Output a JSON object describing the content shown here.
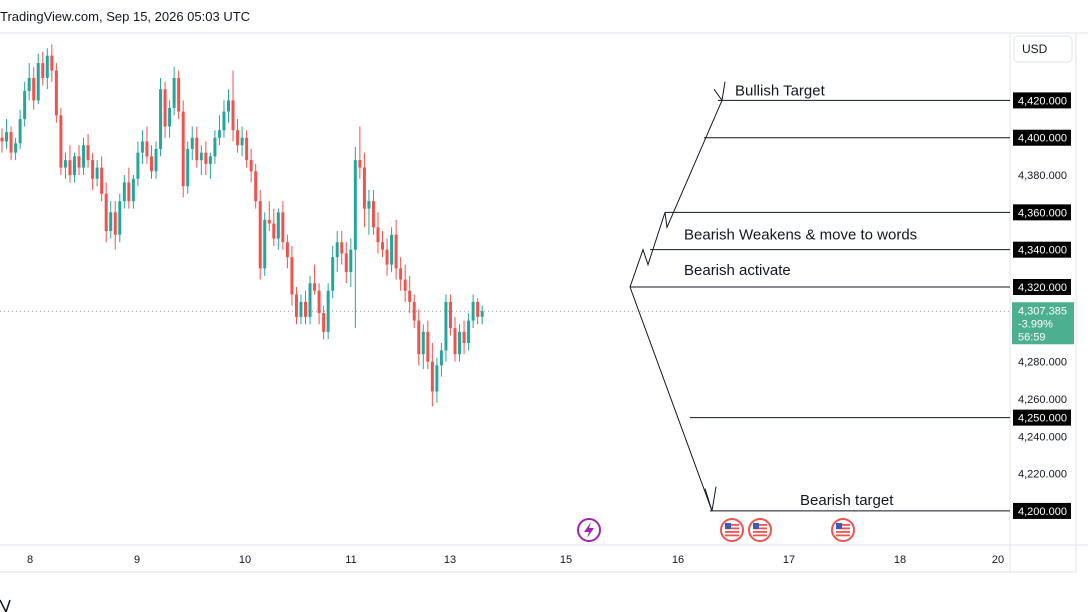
{
  "header": {
    "watermark": "TradingView.com, Sep 15, 2026 05:03 UTC"
  },
  "currency_button": {
    "label": "USD"
  },
  "current_price": {
    "value": "4,307.385",
    "change": "-3.99%",
    "countdown": "56:59",
    "color": "#4caf8f"
  },
  "colors": {
    "up": "#26a69a",
    "down": "#ef5350",
    "line": "#131722",
    "badge": "#000000",
    "event": "#9c27b0"
  },
  "icons": {
    "event_lightning": "lightning-icon",
    "us_flag": "us-flag-icon"
  },
  "chart_data": {
    "type": "candlestick",
    "ylim": [
      4180,
      4460
    ],
    "y_ticks": [
      {
        "value": 4420,
        "label": "4,420.000",
        "badge": true
      },
      {
        "value": 4400,
        "label": "4,400.000",
        "badge": true
      },
      {
        "value": 4380,
        "label": "4,380.000",
        "badge": false
      },
      {
        "value": 4360,
        "label": "4,360.000",
        "badge": true
      },
      {
        "value": 4340,
        "label": "4,340.000",
        "badge": true
      },
      {
        "value": 4320,
        "label": "4,320.000",
        "badge": true
      },
      {
        "value": 4280,
        "label": "4,280.000",
        "badge": false
      },
      {
        "value": 4260,
        "label": "4,260.000",
        "badge": false
      },
      {
        "value": 4250,
        "label": "4,250.000",
        "badge": true
      },
      {
        "value": 4240,
        "label": "4,240.000",
        "badge": false
      },
      {
        "value": 4220,
        "label": "4,220.000",
        "badge": false
      },
      {
        "value": 4200,
        "label": "4,200.000",
        "badge": true
      }
    ],
    "x_ticks": [
      "8",
      "9",
      "10",
      "11",
      "13",
      "15",
      "16",
      "17",
      "18",
      "20"
    ],
    "levels": [
      {
        "price": 4420,
        "label": "Bullish Target"
      },
      {
        "price": 4400,
        "label": ""
      },
      {
        "price": 4360,
        "label": ""
      },
      {
        "price": 4340,
        "label": "Bearish Weakens  & move to words"
      },
      {
        "price": 4320,
        "label": "Bearish activate"
      },
      {
        "price": 4250,
        "label": ""
      },
      {
        "price": 4200,
        "label": "Bearish target"
      }
    ],
    "candles": [
      [
        4400,
        4405,
        4392,
        4398
      ],
      [
        4398,
        4410,
        4394,
        4403
      ],
      [
        4403,
        4406,
        4388,
        4392
      ],
      [
        4392,
        4400,
        4388,
        4397
      ],
      [
        4397,
        4415,
        4394,
        4410
      ],
      [
        4410,
        4430,
        4406,
        4425
      ],
      [
        4425,
        4440,
        4420,
        4432
      ],
      [
        4432,
        4438,
        4415,
        4420
      ],
      [
        4420,
        4445,
        4418,
        4440
      ],
      [
        4440,
        4446,
        4428,
        4432
      ],
      [
        4432,
        4448,
        4426,
        4444
      ],
      [
        4444,
        4450,
        4430,
        4436
      ],
      [
        4436,
        4440,
        4408,
        4412
      ],
      [
        4412,
        4416,
        4380,
        4384
      ],
      [
        4384,
        4392,
        4378,
        4388
      ],
      [
        4388,
        4396,
        4376,
        4380
      ],
      [
        4380,
        4392,
        4376,
        4390
      ],
      [
        4390,
        4396,
        4380,
        4384
      ],
      [
        4384,
        4400,
        4380,
        4396
      ],
      [
        4396,
        4402,
        4384,
        4388
      ],
      [
        4388,
        4392,
        4372,
        4378
      ],
      [
        4378,
        4388,
        4374,
        4384
      ],
      [
        4384,
        4390,
        4366,
        4370
      ],
      [
        4370,
        4376,
        4344,
        4350
      ],
      [
        4350,
        4366,
        4346,
        4360
      ],
      [
        4360,
        4366,
        4340,
        4348
      ],
      [
        4348,
        4370,
        4344,
        4366
      ],
      [
        4366,
        4380,
        4362,
        4376
      ],
      [
        4376,
        4384,
        4362,
        4366
      ],
      [
        4366,
        4380,
        4362,
        4378
      ],
      [
        4378,
        4398,
        4374,
        4392
      ],
      [
        4392,
        4404,
        4386,
        4398
      ],
      [
        4398,
        4406,
        4386,
        4390
      ],
      [
        4390,
        4396,
        4378,
        4382
      ],
      [
        4382,
        4398,
        4378,
        4394
      ],
      [
        4394,
        4432,
        4390,
        4426
      ],
      [
        4426,
        4430,
        4400,
        4406
      ],
      [
        4406,
        4420,
        4400,
        4416
      ],
      [
        4416,
        4438,
        4412,
        4432
      ],
      [
        4432,
        4436,
        4410,
        4414
      ],
      [
        4414,
        4420,
        4368,
        4374
      ],
      [
        4374,
        4398,
        4370,
        4394
      ],
      [
        4394,
        4406,
        4388,
        4400
      ],
      [
        4400,
        4406,
        4384,
        4388
      ],
      [
        4388,
        4396,
        4380,
        4392
      ],
      [
        4392,
        4398,
        4380,
        4386
      ],
      [
        4386,
        4392,
        4378,
        4390
      ],
      [
        4390,
        4404,
        4386,
        4400
      ],
      [
        4400,
        4412,
        4396,
        4404
      ],
      [
        4404,
        4420,
        4400,
        4414
      ],
      [
        4414,
        4426,
        4408,
        4420
      ],
      [
        4420,
        4436,
        4398,
        4404
      ],
      [
        4404,
        4410,
        4392,
        4396
      ],
      [
        4396,
        4406,
        4390,
        4400
      ],
      [
        4400,
        4404,
        4384,
        4388
      ],
      [
        4388,
        4394,
        4376,
        4382
      ],
      [
        4382,
        4386,
        4362,
        4366
      ],
      [
        4366,
        4372,
        4324,
        4330
      ],
      [
        4330,
        4360,
        4326,
        4356
      ],
      [
        4356,
        4366,
        4350,
        4354
      ],
      [
        4354,
        4362,
        4342,
        4346
      ],
      [
        4346,
        4362,
        4340,
        4360
      ],
      [
        4360,
        4366,
        4340,
        4344
      ],
      [
        4344,
        4348,
        4330,
        4336
      ],
      [
        4336,
        4342,
        4310,
        4316
      ],
      [
        4316,
        4320,
        4300,
        4304
      ],
      [
        4304,
        4316,
        4300,
        4312
      ],
      [
        4312,
        4318,
        4300,
        4304
      ],
      [
        4304,
        4326,
        4300,
        4322
      ],
      [
        4322,
        4332,
        4316,
        4318
      ],
      [
        4318,
        4322,
        4300,
        4306
      ],
      [
        4306,
        4310,
        4292,
        4296
      ],
      [
        4296,
        4322,
        4292,
        4318
      ],
      [
        4318,
        4342,
        4314,
        4336
      ],
      [
        4336,
        4350,
        4328,
        4344
      ],
      [
        4344,
        4350,
        4332,
        4338
      ],
      [
        4338,
        4344,
        4322,
        4328
      ],
      [
        4328,
        4346,
        4320,
        4340
      ],
      [
        4340,
        4395,
        4298,
        4388
      ],
      [
        4388,
        4406,
        4378,
        4384
      ],
      [
        4384,
        4392,
        4352,
        4362
      ],
      [
        4362,
        4372,
        4348,
        4366
      ],
      [
        4366,
        4372,
        4348,
        4352
      ],
      [
        4352,
        4360,
        4338,
        4344
      ],
      [
        4344,
        4350,
        4336,
        4340
      ],
      [
        4340,
        4346,
        4326,
        4332
      ],
      [
        4332,
        4352,
        4328,
        4348
      ],
      [
        4348,
        4356,
        4324,
        4330
      ],
      [
        4330,
        4336,
        4318,
        4324
      ],
      [
        4324,
        4332,
        4312,
        4318
      ],
      [
        4318,
        4326,
        4306,
        4312
      ],
      [
        4312,
        4316,
        4298,
        4302
      ],
      [
        4302,
        4308,
        4278,
        4284
      ],
      [
        4284,
        4300,
        4276,
        4296
      ],
      [
        4296,
        4302,
        4276,
        4280
      ],
      [
        4280,
        4290,
        4256,
        4264
      ],
      [
        4264,
        4282,
        4258,
        4278
      ],
      [
        4278,
        4290,
        4272,
        4286
      ],
      [
        4286,
        4316,
        4280,
        4312
      ],
      [
        4312,
        4316,
        4294,
        4298
      ],
      [
        4298,
        4304,
        4280,
        4284
      ],
      [
        4284,
        4300,
        4280,
        4296
      ],
      [
        4296,
        4302,
        4284,
        4290
      ],
      [
        4290,
        4306,
        4286,
        4302
      ],
      [
        4302,
        4316,
        4298,
        4312
      ],
      [
        4312,
        4314,
        4300,
        4304
      ],
      [
        4304,
        4310,
        4300,
        4307
      ]
    ]
  }
}
